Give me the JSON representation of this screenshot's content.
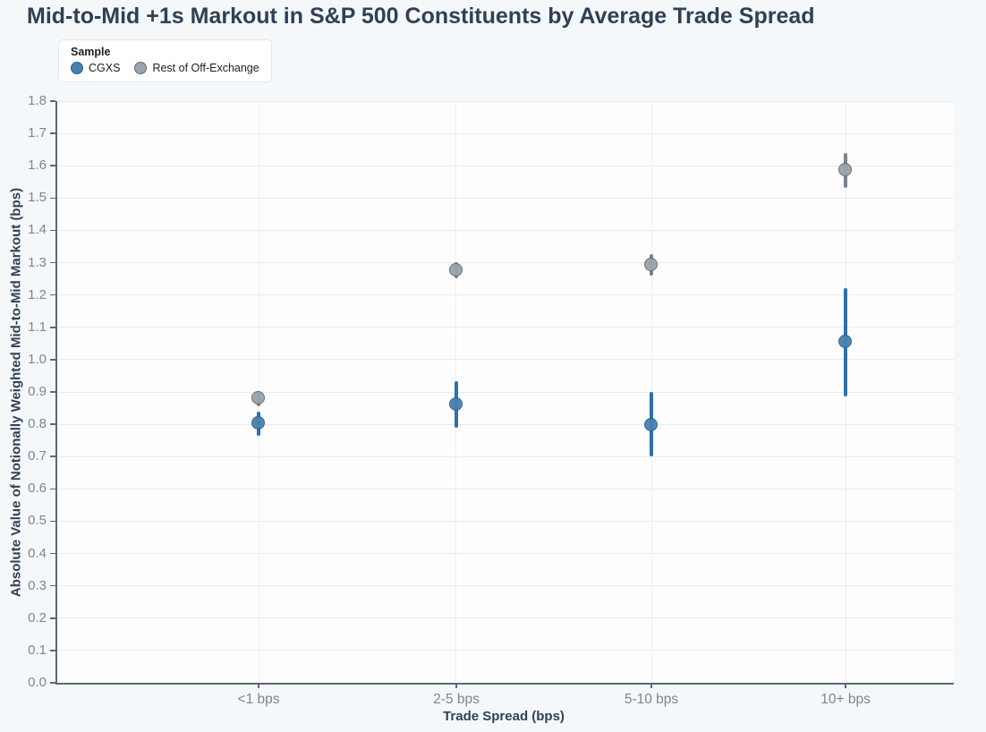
{
  "title": "Mid-to-Mid +1s Markout in S&P 500 Constituents by Average Trade Spread",
  "legend": {
    "title": "Sample",
    "items": [
      {
        "label": "CGXS",
        "fill": "#4781b1",
        "stroke": "#2d5f8d"
      },
      {
        "label": "Rest of Off-Exchange",
        "fill": "#9aa4aa",
        "stroke": "#606b72"
      }
    ]
  },
  "chart_data": {
    "type": "scatter",
    "title": "Mid-to-Mid +1s Markout in S&P 500 Constituents by Average Trade Spread",
    "xlabel": "Trade Spread (bps)",
    "ylabel": "Absolute Value of Notionally Weighted Mid-to-Mid Markout (bps)",
    "categories": [
      "<1 bps",
      "2-5 bps",
      "5-10 bps",
      "10+ bps"
    ],
    "series": [
      {
        "name": "CGXS",
        "fill": "#4781b1",
        "stroke": "#2d5f8d",
        "bar_color": "#2e70ad",
        "values": [
          0.802,
          0.862,
          0.798,
          1.056
        ],
        "ci_low": [
          0.763,
          0.79,
          0.7,
          0.885
        ],
        "ci_high": [
          0.84,
          0.933,
          0.9,
          1.22
        ]
      },
      {
        "name": "Rest of Off-Exchange",
        "fill": "#9aa4aa",
        "stroke": "#606b72",
        "bar_color": "#79838b",
        "values": [
          0.88,
          1.278,
          1.292,
          1.587
        ],
        "ci_low": [
          0.856,
          1.252,
          1.26,
          1.53
        ],
        "ci_high": [
          0.902,
          1.302,
          1.327,
          1.64
        ]
      }
    ],
    "ylim": [
      0.0,
      1.8
    ],
    "yticks": [
      "0.0",
      "0.1",
      "0.2",
      "0.3",
      "0.4",
      "0.5",
      "0.6",
      "0.7",
      "0.8",
      "0.9",
      "1.0",
      "1.1",
      "1.2",
      "1.3",
      "1.4",
      "1.5",
      "1.6",
      "1.7",
      "1.8"
    ],
    "grid": true,
    "legend_position": "top-left",
    "error_bars": true
  }
}
